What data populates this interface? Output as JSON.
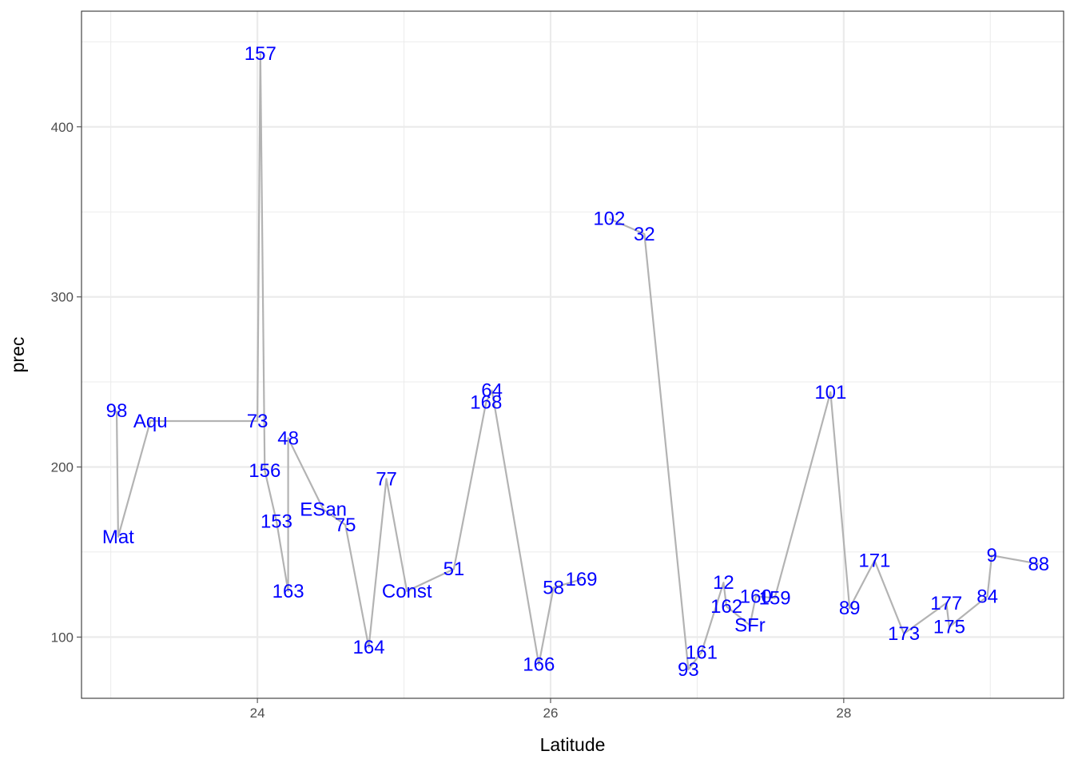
{
  "chart_data": {
    "type": "line",
    "title": "",
    "xlabel": "Latitude",
    "ylabel": "prec",
    "xlim": [
      22.8,
      29.5
    ],
    "ylim": [
      64,
      468
    ],
    "x_ticks": [
      24,
      26,
      28
    ],
    "x_tick_labels": [
      "24",
      "26",
      "28"
    ],
    "x_minor_ticks": [
      23,
      25,
      27,
      29
    ],
    "y_ticks": [
      100,
      200,
      300,
      400
    ],
    "y_tick_labels": [
      "100",
      "200",
      "300",
      "400"
    ],
    "y_minor_ticks": [
      150,
      250,
      350,
      450
    ],
    "grid": true,
    "legend": "none",
    "colors": {
      "line": "#b3b3b3",
      "label": "#0000ff",
      "grid": "#ebebeb",
      "panel_border": "#333333",
      "tick": "#4d4d4d"
    },
    "segments": [
      [
        {
          "x": 23.04,
          "y": 233,
          "label": "98"
        },
        {
          "x": 23.05,
          "y": 159,
          "label": "Mat"
        },
        {
          "x": 23.27,
          "y": 227,
          "label": "Aqu"
        },
        {
          "x": 24.0,
          "y": 227,
          "label": "73"
        },
        {
          "x": 24.02,
          "y": 443,
          "label": "157"
        },
        {
          "x": 24.05,
          "y": 198,
          "label": "156"
        },
        {
          "x": 24.13,
          "y": 168,
          "label": "153"
        },
        {
          "x": 24.21,
          "y": 127,
          "label": "163"
        },
        {
          "x": 24.21,
          "y": 217,
          "label": "48"
        },
        {
          "x": 24.45,
          "y": 175,
          "label": "ESan"
        },
        {
          "x": 24.6,
          "y": 166,
          "label": "75"
        },
        {
          "x": 24.76,
          "y": 94,
          "label": "164"
        },
        {
          "x": 24.88,
          "y": 193,
          "label": "77"
        },
        {
          "x": 25.02,
          "y": 127,
          "label": "Const"
        },
        {
          "x": 25.34,
          "y": 140,
          "label": "51"
        },
        {
          "x": 25.56,
          "y": 238,
          "label": "168"
        },
        {
          "x": 25.6,
          "y": 245,
          "label": "64"
        },
        {
          "x": 25.92,
          "y": 84,
          "label": "166"
        },
        {
          "x": 26.02,
          "y": 129,
          "label": "58"
        },
        {
          "x": 26.21,
          "y": 134,
          "label": "169"
        }
      ],
      [
        {
          "x": 26.4,
          "y": 346,
          "label": "102"
        },
        {
          "x": 26.64,
          "y": 337,
          "label": "32"
        },
        {
          "x": 26.94,
          "y": 81,
          "label": "93"
        },
        {
          "x": 27.03,
          "y": 91,
          "label": "161"
        },
        {
          "x": 27.18,
          "y": 132,
          "label": "12"
        },
        {
          "x": 27.2,
          "y": 118,
          "label": "162"
        },
        {
          "x": 27.36,
          "y": 107,
          "label": "SFr"
        },
        {
          "x": 27.4,
          "y": 124,
          "label": "160"
        },
        {
          "x": 27.53,
          "y": 123,
          "label": "159"
        },
        {
          "x": 27.91,
          "y": 244,
          "label": "101"
        },
        {
          "x": 28.04,
          "y": 117,
          "label": "89"
        },
        {
          "x": 28.21,
          "y": 145,
          "label": "171"
        },
        {
          "x": 28.41,
          "y": 102,
          "label": "173"
        },
        {
          "x": 28.7,
          "y": 120,
          "label": "177"
        },
        {
          "x": 28.72,
          "y": 106,
          "label": "175"
        },
        {
          "x": 28.98,
          "y": 124,
          "label": "84"
        },
        {
          "x": 29.01,
          "y": 148,
          "label": "9"
        },
        {
          "x": 29.33,
          "y": 143,
          "label": "88"
        }
      ]
    ]
  }
}
